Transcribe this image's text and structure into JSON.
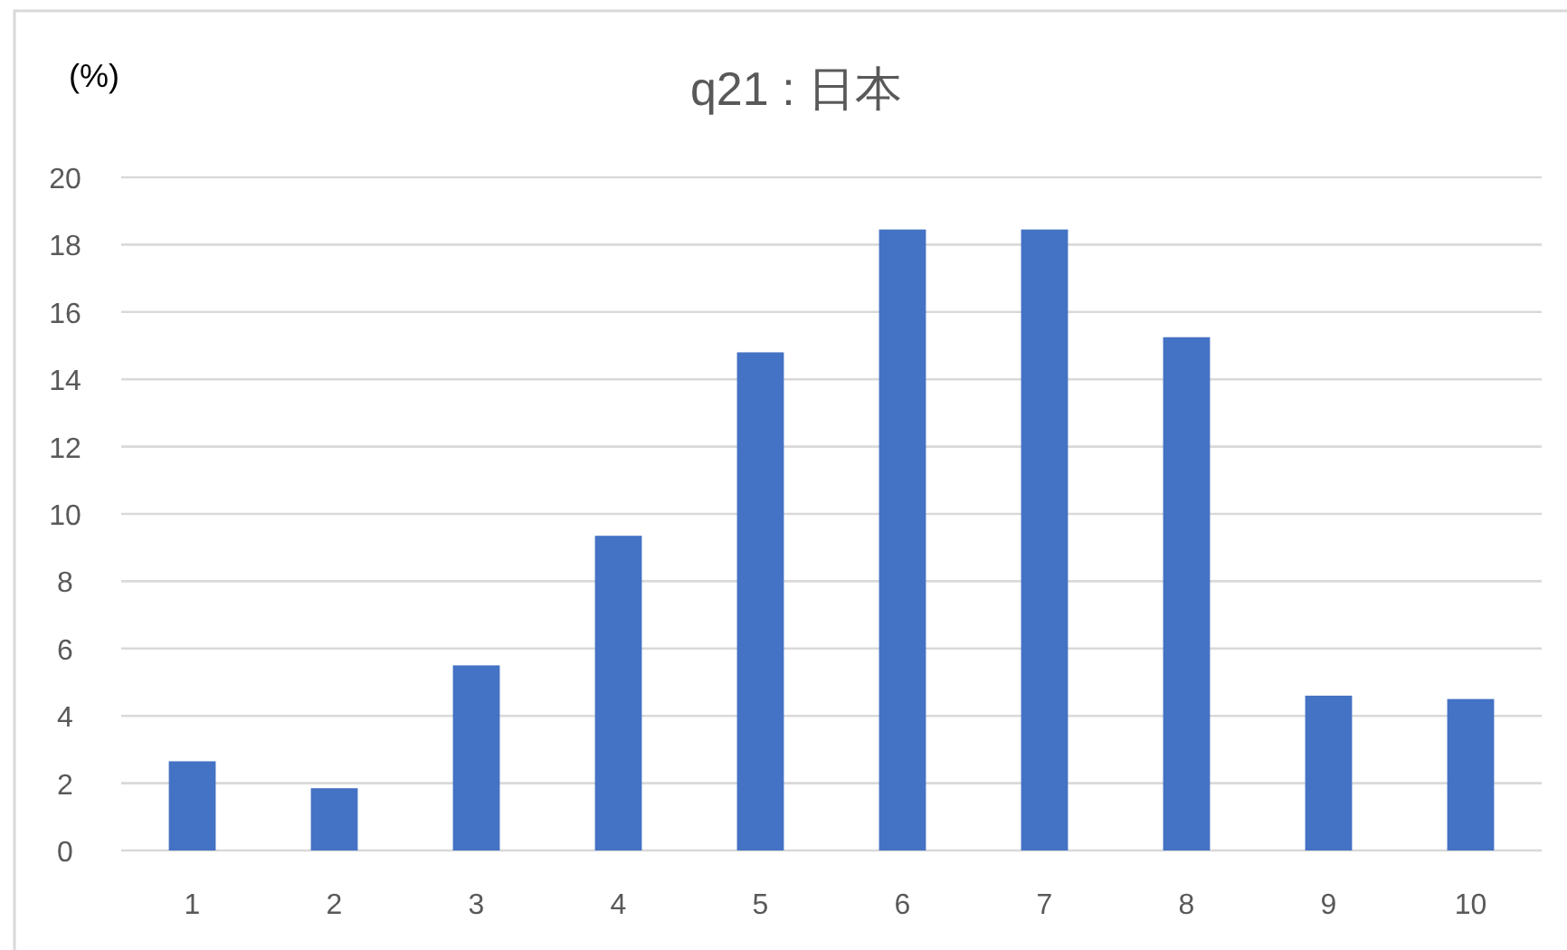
{
  "chart_data": {
    "type": "bar",
    "title": "q21 : 日本",
    "ylabel": "(%)",
    "categories": [
      "1",
      "2",
      "3",
      "4",
      "5",
      "6",
      "7",
      "8",
      "9",
      "10"
    ],
    "values": [
      2.65,
      1.85,
      5.5,
      9.35,
      14.8,
      18.45,
      18.45,
      15.25,
      4.6,
      4.5
    ],
    "color": "#4472c4",
    "ylim": [
      0,
      20
    ],
    "yticks": [
      0,
      2,
      4,
      6,
      8,
      10,
      12,
      14,
      16,
      18,
      20
    ],
    "grid": "y"
  }
}
